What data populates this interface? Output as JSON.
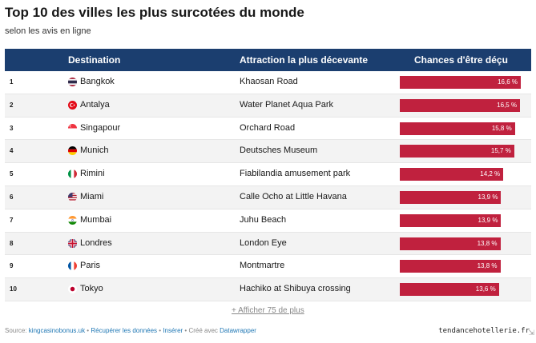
{
  "title": "Top 10 des villes les plus surcotées du monde",
  "subtitle": "selon les avis en ligne",
  "headers": {
    "destination": "Destination",
    "attraction": "Attraction la plus décevante",
    "chance": "Chances d'être déçu"
  },
  "chart_data": {
    "type": "table",
    "title": "Top 10 des villes les plus surcotées du monde",
    "subtitle": "selon les avis en ligne",
    "columns": [
      "Destination",
      "Attraction la plus décevante",
      "Chances d'être déçu"
    ],
    "bar_color": "#c0213e",
    "header_color": "#1b3e6f",
    "rows": [
      {
        "rank": "1",
        "city": "Bangkok",
        "flag": "thailand-flag-icon",
        "attraction": "Khaosan Road",
        "value": 16.6,
        "label": "16,6 %"
      },
      {
        "rank": "2",
        "city": "Antalya",
        "flag": "turkey-flag-icon",
        "attraction": "Water Planet Aqua Park",
        "value": 16.5,
        "label": "16,5 %"
      },
      {
        "rank": "3",
        "city": "Singapour",
        "flag": "singapore-flag-icon",
        "attraction": "Orchard Road",
        "value": 15.8,
        "label": "15,8 %"
      },
      {
        "rank": "4",
        "city": "Munich",
        "flag": "germany-flag-icon",
        "attraction": "Deutsches Museum",
        "value": 15.7,
        "label": "15,7 %"
      },
      {
        "rank": "5",
        "city": "Rimini",
        "flag": "italy-flag-icon",
        "attraction": "Fiabilandia amusement park",
        "value": 14.2,
        "label": "14,2 %"
      },
      {
        "rank": "6",
        "city": "Miami",
        "flag": "usa-flag-icon",
        "attraction": "Calle Ocho at Little Havana",
        "value": 13.9,
        "label": "13,9 %"
      },
      {
        "rank": "7",
        "city": "Mumbai",
        "flag": "india-flag-icon",
        "attraction": "Juhu Beach",
        "value": 13.9,
        "label": "13,9 %"
      },
      {
        "rank": "8",
        "city": "Londres",
        "flag": "uk-flag-icon",
        "attraction": "London Eye",
        "value": 13.8,
        "label": "13,8 %"
      },
      {
        "rank": "9",
        "city": "Paris",
        "flag": "france-flag-icon",
        "attraction": "Montmartre",
        "value": 13.8,
        "label": "13,8 %"
      },
      {
        "rank": "10",
        "city": "Tokyo",
        "flag": "japan-flag-icon",
        "attraction": "Hachiko at Shibuya crossing",
        "value": 13.6,
        "label": "13,6 %"
      }
    ]
  },
  "more_link": "+ Afficher 75 de plus",
  "footer": {
    "source_prefix": "Source: ",
    "source": "kingcasinobonus.uk",
    "sep1": " • ",
    "get_data": "Récupérer les données",
    "sep2": " • ",
    "embed": "Insérer",
    "created": " • Créé avec ",
    "tool": "Datawrapper"
  },
  "watermark": "tendancehotellerie.fr"
}
